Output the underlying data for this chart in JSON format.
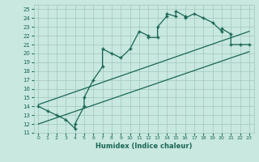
{
  "xlabel": "Humidex (Indice chaleur)",
  "xlim": [
    -0.5,
    23.5
  ],
  "ylim": [
    11,
    25.5
  ],
  "xticks": [
    0,
    1,
    2,
    3,
    4,
    5,
    6,
    7,
    8,
    9,
    10,
    11,
    12,
    13,
    14,
    15,
    16,
    17,
    18,
    19,
    20,
    21,
    22,
    23
  ],
  "yticks": [
    11,
    12,
    13,
    14,
    15,
    16,
    17,
    18,
    19,
    20,
    21,
    22,
    23,
    24,
    25
  ],
  "bg_color": "#c8e8e0",
  "line_color": "#1a6655",
  "grid_color": "#a0c8bc",
  "main_x": [
    0,
    1,
    2,
    3,
    4,
    4,
    5,
    5,
    6,
    7,
    7,
    8,
    9,
    10,
    11,
    12,
    12,
    13,
    13,
    14,
    14,
    15,
    15,
    16,
    16,
    17,
    18,
    19,
    20,
    20,
    21,
    21,
    22,
    23
  ],
  "main_y": [
    14,
    13.5,
    13,
    12.5,
    11.5,
    12,
    14,
    15,
    17,
    18.5,
    20.5,
    20,
    19.5,
    20.5,
    22.5,
    22,
    21.8,
    21.8,
    23,
    24.2,
    24.5,
    24.2,
    24.8,
    24.2,
    24,
    24.5,
    24,
    23.5,
    22.5,
    22.8,
    22.2,
    21,
    21,
    21
  ],
  "line1_x": [
    0,
    23
  ],
  "line1_y": [
    14.2,
    22.5
  ],
  "line2_x": [
    0,
    23
  ],
  "line2_y": [
    12,
    20.2
  ],
  "marker_x": [
    0,
    1,
    2,
    3,
    4,
    5,
    6,
    7,
    8,
    9,
    10,
    11,
    12,
    13,
    14,
    15,
    16,
    17,
    18,
    19,
    20,
    21,
    22,
    23
  ],
  "marker_y": [
    14,
    13.5,
    13,
    12.5,
    11.5,
    15,
    17,
    20.5,
    20,
    19.5,
    20.5,
    22.5,
    21.8,
    23,
    24.5,
    24.8,
    24,
    24.5,
    24,
    23.5,
    22.5,
    21,
    21,
    21
  ]
}
